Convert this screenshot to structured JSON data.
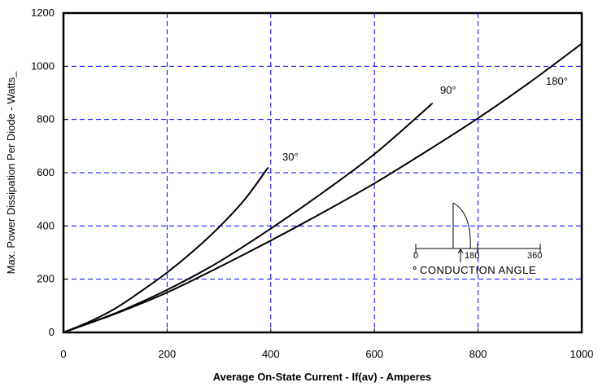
{
  "chart_data": {
    "type": "line",
    "title": "",
    "xlabel": "Average On-State Current - If(av) - Amperes",
    "ylabel": "Max. Power Dissipation Per Diode - Watts_",
    "xlim": [
      0,
      1000
    ],
    "ylim": [
      0,
      1200
    ],
    "xticks": [
      0,
      200,
      400,
      600,
      800,
      1000
    ],
    "yticks": [
      0,
      200,
      400,
      600,
      800,
      1000,
      1200
    ],
    "grid": true,
    "grid_color": "#0000ff",
    "series": [
      {
        "name": "30°",
        "x": [
          0,
          50,
          100,
          150,
          200,
          250,
          300,
          350,
          395
        ],
        "y": [
          0,
          40,
          90,
          155,
          225,
          305,
          395,
          500,
          620
        ]
      },
      {
        "name": "90°",
        "x": [
          0,
          100,
          200,
          300,
          400,
          500,
          600,
          700,
          710
        ],
        "y": [
          0,
          72,
          160,
          265,
          390,
          525,
          670,
          840,
          860
        ]
      },
      {
        "name": "180°",
        "x": [
          0,
          100,
          200,
          300,
          400,
          500,
          600,
          700,
          800,
          900,
          1000
        ],
        "y": [
          0,
          70,
          150,
          245,
          345,
          450,
          560,
          680,
          805,
          940,
          1085
        ]
      }
    ],
    "inset": {
      "ticks": [
        "0",
        "180",
        "360"
      ],
      "caption": "CONDUCTION ANGLE",
      "marker": "°"
    }
  }
}
